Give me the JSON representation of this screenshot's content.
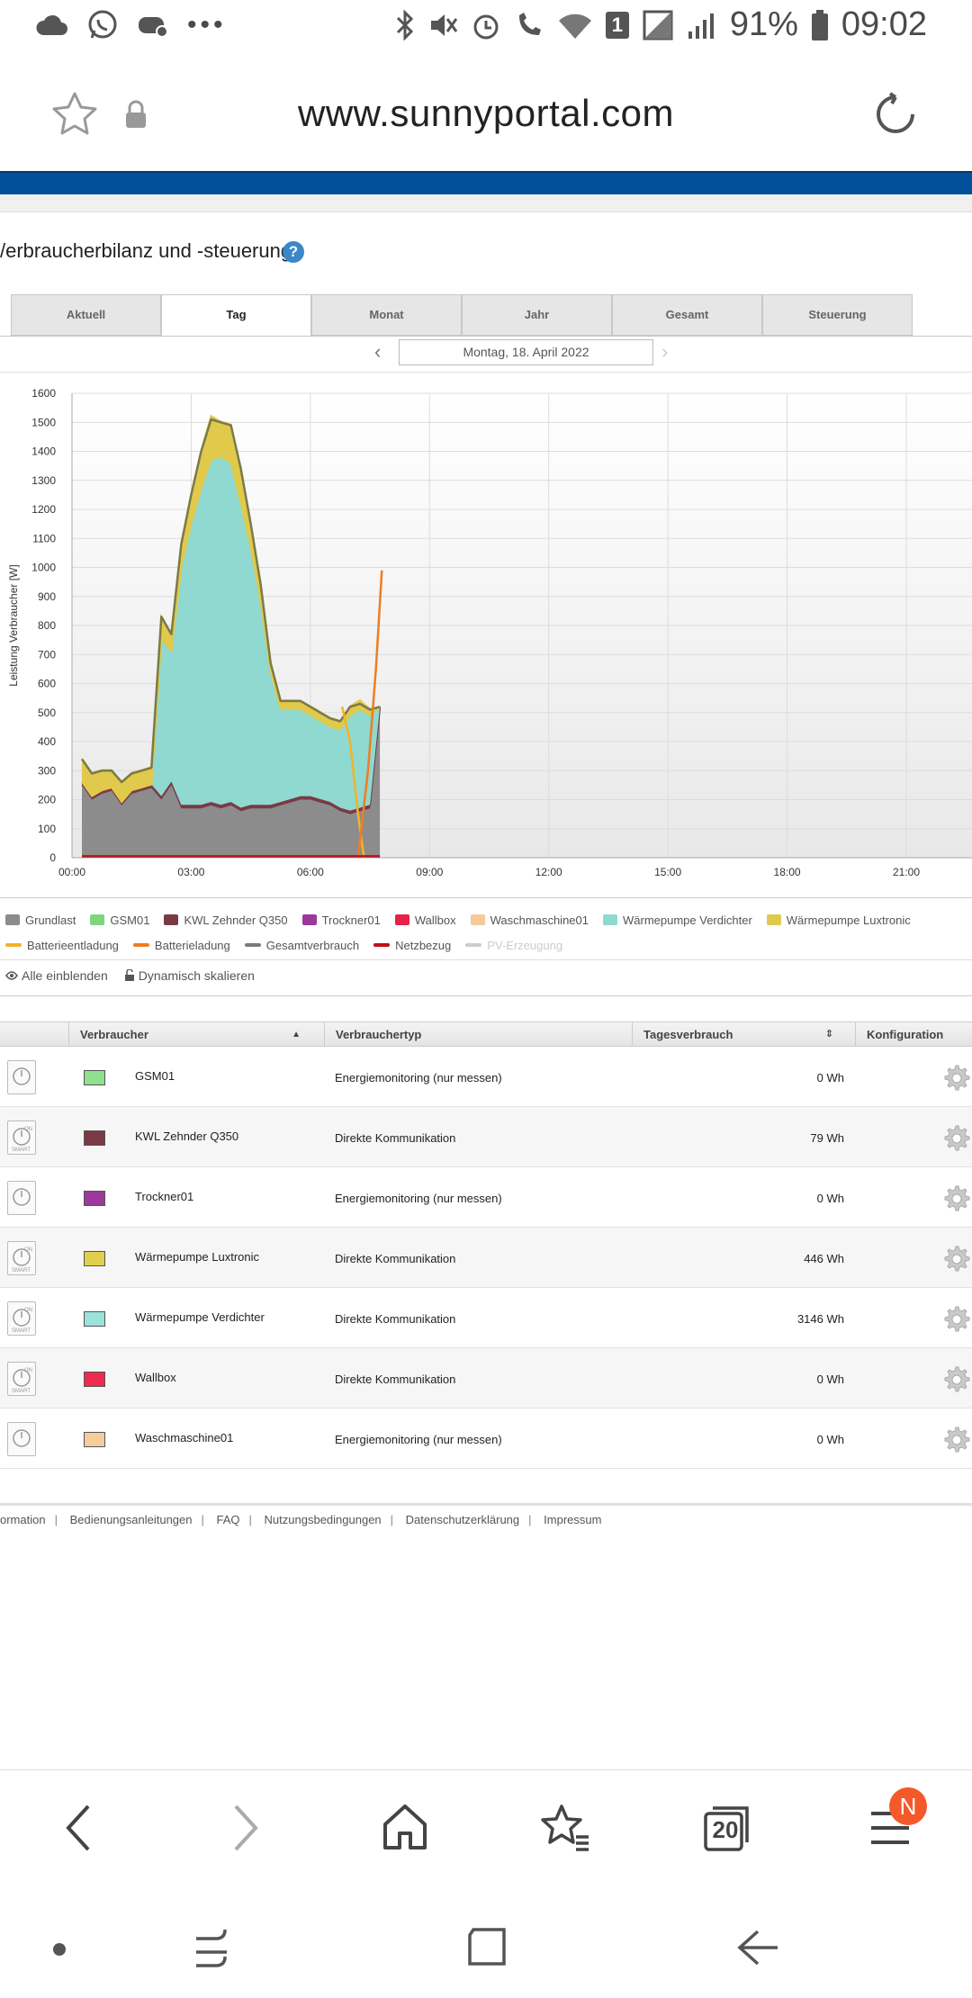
{
  "status_bar": {
    "battery": "91%",
    "time": "09:02",
    "sim_slot": "1"
  },
  "url_bar": {
    "url": "www.sunnyportal.com"
  },
  "page": {
    "title": "/erbraucherbilanz und -steuerung",
    "help": "?"
  },
  "tabs": [
    "Aktuell",
    "Tag",
    "Monat",
    "Jahr",
    "Gesamt",
    "Steuerung"
  ],
  "active_tab": "Tag",
  "date_nav": {
    "date": "Montag, 18. April 2022",
    "prev": "‹",
    "next": "›"
  },
  "chart_data": {
    "type": "area",
    "ylabel": "Leistung Verbraucher [W]",
    "ylim": [
      0,
      1600
    ],
    "yticks": [
      0,
      100,
      200,
      300,
      400,
      500,
      600,
      700,
      800,
      900,
      1000,
      1100,
      1200,
      1300,
      1400,
      1500,
      1600
    ],
    "xlim": [
      0,
      24
    ],
    "xticks": [
      "00:00",
      "03:00",
      "06:00",
      "09:00",
      "12:00",
      "15:00",
      "18:00",
      "21:00"
    ],
    "x": [
      0.25,
      0.5,
      0.75,
      1.0,
      1.25,
      1.5,
      1.75,
      2.0,
      2.25,
      2.5,
      2.75,
      3.0,
      3.25,
      3.5,
      3.75,
      4.0,
      4.25,
      4.5,
      4.75,
      5.0,
      5.25,
      5.5,
      5.75,
      6.0,
      6.25,
      6.5,
      6.75,
      7.0,
      7.25,
      7.5,
      7.75
    ],
    "series": [
      {
        "name": "Grundlast",
        "color": "#8c8c8c",
        "values": [
          250,
          200,
          220,
          230,
          180,
          220,
          230,
          240,
          200,
          250,
          170,
          170,
          170,
          180,
          170,
          180,
          160,
          170,
          170,
          170,
          180,
          190,
          200,
          200,
          190,
          180,
          160,
          150,
          160,
          170,
          520
        ]
      },
      {
        "name": "KWL Zehnder Q350",
        "color": "#7a3a45",
        "values": [
          12,
          12,
          12,
          12,
          12,
          12,
          12,
          12,
          12,
          12,
          12,
          12,
          12,
          12,
          12,
          12,
          12,
          12,
          12,
          12,
          12,
          12,
          12,
          12,
          12,
          12,
          12,
          12,
          12,
          12,
          0
        ]
      },
      {
        "name": "Wärmepumpe Verdichter",
        "color": "#8fd9d0",
        "values": [
          0,
          0,
          0,
          0,
          0,
          0,
          0,
          0,
          540,
          450,
          820,
          970,
          1090,
          1180,
          1200,
          1170,
          1050,
          890,
          700,
          460,
          320,
          310,
          300,
          280,
          270,
          260,
          270,
          330,
          340,
          310,
          0
        ]
      },
      {
        "name": "Wärmepumpe Luxtronic",
        "color": "#e1c94b",
        "values": [
          80,
          80,
          70,
          60,
          70,
          60,
          60,
          60,
          80,
          60,
          80,
          100,
          130,
          150,
          120,
          130,
          110,
          80,
          60,
          30,
          30,
          30,
          30,
          30,
          30,
          30,
          30,
          30,
          30,
          20,
          0
        ]
      }
    ],
    "lines": [
      {
        "name": "Gesamtverbrauch",
        "color": "#7a7a4a",
        "values": [
          340,
          290,
          300,
          300,
          260,
          290,
          300,
          310,
          830,
          770,
          1080,
          1250,
          1400,
          1510,
          1500,
          1490,
          1340,
          1150,
          940,
          670,
          540,
          540,
          540,
          520,
          500,
          480,
          470,
          520,
          530,
          510,
          520
        ]
      },
      {
        "name": "Batterieentladung",
        "color": "#f0b429",
        "points": [
          [
            6.8,
            520
          ],
          [
            7.0,
            400
          ],
          [
            7.2,
            150
          ],
          [
            7.35,
            0
          ]
        ]
      },
      {
        "name": "Batterieladung",
        "color": "#ef7d21",
        "points": [
          [
            7.2,
            0
          ],
          [
            7.45,
            300
          ],
          [
            7.65,
            650
          ],
          [
            7.8,
            990
          ]
        ]
      },
      {
        "name": "Netzbezug",
        "color": "#c0101a",
        "points": [
          [
            0.25,
            5
          ],
          [
            7.75,
            5
          ]
        ]
      }
    ],
    "legend": [
      {
        "name": "Grundlast",
        "color": "#8c8c8c",
        "shape": "box"
      },
      {
        "name": "GSM01",
        "color": "#7fd67f",
        "shape": "box"
      },
      {
        "name": "KWL Zehnder Q350",
        "color": "#7a3a45",
        "shape": "box"
      },
      {
        "name": "Trockner01",
        "color": "#9b3a9b",
        "shape": "box"
      },
      {
        "name": "Wallbox",
        "color": "#e8214a",
        "shape": "box"
      },
      {
        "name": "Waschmaschine01",
        "color": "#f5c99a",
        "shape": "box"
      },
      {
        "name": "Wärmepumpe Verdichter",
        "color": "#8fd9d0",
        "shape": "box"
      },
      {
        "name": "Wärmepumpe Luxtronic",
        "color": "#e1c94b",
        "shape": "box"
      },
      {
        "name": "Batterieentladung",
        "color": "#f0b429",
        "shape": "line"
      },
      {
        "name": "Batterieladung",
        "color": "#ef7d21",
        "shape": "line"
      },
      {
        "name": "Gesamtverbrauch",
        "color": "#7a7a7a",
        "shape": "line"
      },
      {
        "name": "Netzbezug",
        "color": "#c0101a",
        "shape": "line"
      },
      {
        "name": "PV-Erzeugung",
        "color": "#cccccc",
        "shape": "line",
        "disabled": true
      }
    ]
  },
  "chart_options": {
    "show_all": "Alle einblenden",
    "dynamic_scale": "Dynamisch skalieren"
  },
  "table": {
    "headers": {
      "consumer": "Verbraucher",
      "type": "Verbrauchertyp",
      "daily": "Tagesverbrauch",
      "config": "Konfiguration"
    },
    "rows": [
      {
        "name": "GSM01",
        "color": "#8fe08f",
        "type": "Energiemonitoring (nur messen)",
        "value": "0 Wh",
        "icon": "meter-icon"
      },
      {
        "name": "KWL Zehnder Q350",
        "color": "#7a3a45",
        "type": "Direkte Kommunikation",
        "value": "79 Wh",
        "icon": "smart-icon"
      },
      {
        "name": "Trockner01",
        "color": "#9b3a9b",
        "type": "Energiemonitoring (nur messen)",
        "value": "0 Wh",
        "icon": "meter-icon"
      },
      {
        "name": "Wärmepumpe Luxtronic",
        "color": "#e1cf4b",
        "type": "Direkte Kommunikation",
        "value": "446 Wh",
        "icon": "smart-icon"
      },
      {
        "name": "Wärmepumpe Verdichter",
        "color": "#9ae2da",
        "type": "Direkte Kommunikation",
        "value": "3146 Wh",
        "icon": "smart-icon"
      },
      {
        "name": "Wallbox",
        "color": "#ef2a4f",
        "type": "Direkte Kommunikation",
        "value": "0 Wh",
        "icon": "smart-icon"
      },
      {
        "name": "Waschmaschine01",
        "color": "#f7cc9c",
        "type": "Energiemonitoring (nur messen)",
        "value": "0 Wh",
        "icon": "meter-icon"
      }
    ]
  },
  "footer": [
    "ormation",
    "Bedienungsanleitungen",
    "FAQ",
    "Nutzungsbedingungen",
    "Datenschutzerklärung",
    "Impressum"
  ],
  "bottom_bar": {
    "tab_count": "20",
    "badge": "N"
  }
}
